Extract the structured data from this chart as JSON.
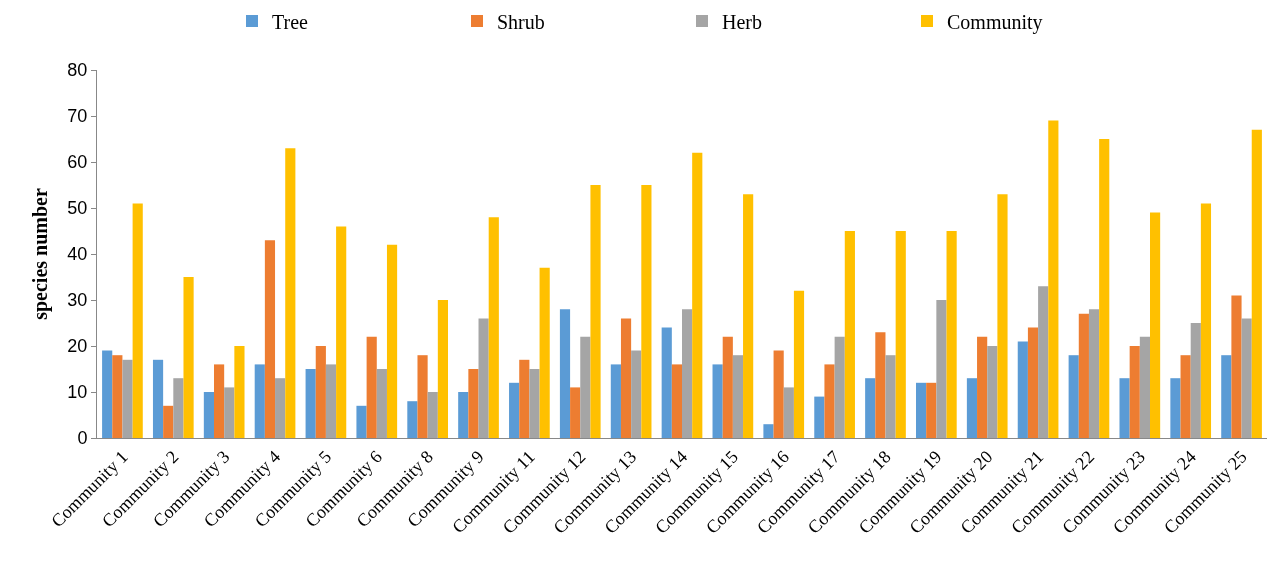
{
  "chart_data": {
    "type": "bar",
    "ylabel": "species number",
    "categories": [
      "Community 1",
      "Community 2",
      "Community 3",
      "Community 4",
      "Community 5",
      "Community 6",
      "Community 8",
      "Community 9",
      "Community 11",
      "Community 12",
      "Community 13",
      "Community 14",
      "Community 15",
      "Community 16",
      "Community 17",
      "Community 18",
      "Community 19",
      "Community 20",
      "Community 21",
      "Community 22",
      "Community 23",
      "Community 24",
      "Community 25"
    ],
    "series": [
      {
        "name": "Tree",
        "color": "#5b9bd5",
        "values": [
          19,
          17,
          10,
          16,
          15,
          7,
          8,
          10,
          12,
          28,
          16,
          24,
          16,
          3,
          9,
          13,
          12,
          13,
          21,
          18,
          13,
          13,
          18
        ]
      },
      {
        "name": "Shrub",
        "color": "#ed7d31",
        "values": [
          18,
          7,
          16,
          43,
          20,
          22,
          18,
          15,
          17,
          11,
          26,
          16,
          22,
          19,
          16,
          23,
          12,
          22,
          24,
          27,
          20,
          18,
          31
        ]
      },
      {
        "name": "Herb",
        "color": "#a5a5a5",
        "values": [
          17,
          13,
          11,
          13,
          16,
          15,
          10,
          26,
          15,
          22,
          19,
          28,
          18,
          11,
          22,
          18,
          30,
          20,
          33,
          28,
          22,
          25,
          26
        ]
      },
      {
        "name": "Community",
        "color": "#ffc000",
        "values": [
          51,
          35,
          20,
          63,
          46,
          42,
          30,
          48,
          37,
          55,
          55,
          62,
          53,
          32,
          45,
          45,
          45,
          53,
          69,
          65,
          49,
          51,
          67
        ]
      }
    ],
    "ylim": [
      0,
      80
    ],
    "yticks": [
      0,
      10,
      20,
      30,
      40,
      50,
      60,
      70,
      80
    ],
    "grid": false,
    "legend": "top"
  }
}
